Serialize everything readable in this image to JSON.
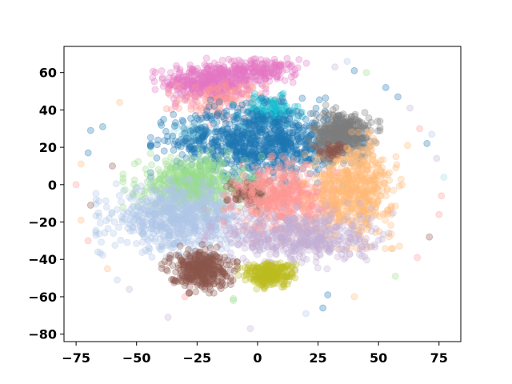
{
  "chart_data": {
    "type": "scatter",
    "title": "",
    "xlabel": "",
    "ylabel": "",
    "xlim": [
      -80,
      84
    ],
    "ylim": [
      -84,
      74
    ],
    "grid": false,
    "legend": "none",
    "xticks": [
      -75,
      -50,
      -25,
      0,
      25,
      50,
      75
    ],
    "yticks": [
      -80,
      -60,
      -40,
      -20,
      0,
      20,
      40,
      60
    ],
    "xtick_labels": [
      "−75",
      "−50",
      "−25",
      "0",
      "25",
      "50",
      "75"
    ],
    "ytick_labels": [
      "−80",
      "−60",
      "−40",
      "−20",
      "0",
      "20",
      "40",
      "60"
    ],
    "point_alpha": 0.3,
    "clusters": [
      {
        "color": "#e377c2",
        "center": [
          -20,
          55
        ],
        "spread": [
          9,
          5
        ],
        "n": 420
      },
      {
        "color": "#e377c2",
        "center": [
          2,
          61
        ],
        "spread": [
          7,
          3
        ],
        "n": 160
      },
      {
        "color": "#ff9896",
        "center": [
          -15,
          45
        ],
        "spread": [
          9,
          5
        ],
        "n": 120
      },
      {
        "color": "#17becf",
        "center": [
          5,
          39
        ],
        "spread": [
          6,
          4
        ],
        "n": 130
      },
      {
        "color": "#9edae5",
        "center": [
          -27,
          28
        ],
        "spread": [
          4,
          3
        ],
        "n": 60
      },
      {
        "color": "#1f77b4",
        "center": [
          0,
          23
        ],
        "spread": [
          17,
          9
        ],
        "n": 900
      },
      {
        "color": "#7f7f7f",
        "center": [
          35,
          27
        ],
        "spread": [
          6,
          6
        ],
        "n": 420
      },
      {
        "color": "#98df8a",
        "center": [
          -27,
          0
        ],
        "spread": [
          11,
          7
        ],
        "n": 520
      },
      {
        "color": "#aec7e8",
        "center": [
          -33,
          -18
        ],
        "spread": [
          13,
          8
        ],
        "n": 720
      },
      {
        "color": "#8c564b",
        "center": [
          -2,
          -5
        ],
        "spread": [
          5,
          4
        ],
        "n": 90
      },
      {
        "color": "#ff9896",
        "center": [
          12,
          -8
        ],
        "spread": [
          10,
          9
        ],
        "n": 520
      },
      {
        "color": "#ffbb78",
        "center": [
          40,
          -3
        ],
        "spread": [
          8,
          12
        ],
        "n": 580
      },
      {
        "color": "#c5b0d5",
        "center": [
          17,
          -28
        ],
        "spread": [
          15,
          7
        ],
        "n": 520
      },
      {
        "color": "#8c564b",
        "center": [
          -24,
          -45
        ],
        "spread": [
          6,
          5
        ],
        "n": 360
      },
      {
        "color": "#bcbd22",
        "center": [
          5,
          -48
        ],
        "spread": [
          5,
          3
        ],
        "n": 260
      },
      {
        "color": "#8c564b",
        "center": [
          30,
          18
        ],
        "spread": [
          3,
          2
        ],
        "n": 40
      }
    ],
    "outliers": [
      {
        "x": -75,
        "y": 0,
        "color": "#ff9896"
      },
      {
        "x": -73,
        "y": -19,
        "color": "#ffbb78"
      },
      {
        "x": -70,
        "y": -30,
        "color": "#ff9896"
      },
      {
        "x": -69,
        "y": -11,
        "color": "#8c564b"
      },
      {
        "x": -70,
        "y": 17,
        "color": "#1f77b4"
      },
      {
        "x": -69,
        "y": 29,
        "color": "#1f77b4"
      },
      {
        "x": -64,
        "y": 31,
        "color": "#1f77b4"
      },
      {
        "x": -73,
        "y": 11,
        "color": "#ffbb78"
      },
      {
        "x": -57,
        "y": 44,
        "color": "#ffbb78"
      },
      {
        "x": -66,
        "y": -36,
        "color": "#aec7e8"
      },
      {
        "x": -62,
        "y": -45,
        "color": "#ffbb78"
      },
      {
        "x": -58,
        "y": -51,
        "color": "#aec7e8"
      },
      {
        "x": -53,
        "y": -56,
        "color": "#c5b0d5"
      },
      {
        "x": -37,
        "y": -71,
        "color": "#c5b0d5"
      },
      {
        "x": -3,
        "y": -77,
        "color": "#c5b0d5"
      },
      {
        "x": 20,
        "y": -69,
        "color": "#aec7e8"
      },
      {
        "x": 27,
        "y": -66,
        "color": "#1f77b4"
      },
      {
        "x": 40,
        "y": -60,
        "color": "#ffbb78"
      },
      {
        "x": 29,
        "y": -59,
        "color": "#1f77b4"
      },
      {
        "x": 57,
        "y": -49,
        "color": "#98df8a"
      },
      {
        "x": 66,
        "y": -39,
        "color": "#ff9896"
      },
      {
        "x": 71,
        "y": -28,
        "color": "#8c564b"
      },
      {
        "x": 75,
        "y": -16,
        "color": "#ff9896"
      },
      {
        "x": 76,
        "y": -6,
        "color": "#ff9896"
      },
      {
        "x": 77,
        "y": 4,
        "color": "#9edae5"
      },
      {
        "x": 74,
        "y": 14,
        "color": "#c5b0d5"
      },
      {
        "x": 72,
        "y": 27,
        "color": "#aec7e8"
      },
      {
        "x": 70,
        "y": 22,
        "color": "#1f77b4"
      },
      {
        "x": 67,
        "y": 30,
        "color": "#ff9896"
      },
      {
        "x": 63,
        "y": 41,
        "color": "#c5b0d5"
      },
      {
        "x": 58,
        "y": 47,
        "color": "#1f77b4"
      },
      {
        "x": 53,
        "y": 52,
        "color": "#1f77b4"
      },
      {
        "x": 45,
        "y": 60,
        "color": "#98df8a"
      },
      {
        "x": 40,
        "y": 61,
        "color": "#1f77b4"
      },
      {
        "x": 37,
        "y": 66,
        "color": "#aec7e8"
      },
      {
        "x": 32,
        "y": 63,
        "color": "#c5b0d5"
      },
      {
        "x": 62,
        "y": 21,
        "color": "#ffbb78"
      },
      {
        "x": -60,
        "y": 10,
        "color": "#8c564b"
      },
      {
        "x": -10,
        "y": -62,
        "color": "#98df8a"
      },
      {
        "x": -10,
        "y": -61,
        "color": "#98df8a"
      },
      {
        "x": -30,
        "y": -60,
        "color": "#ff9896"
      }
    ]
  }
}
